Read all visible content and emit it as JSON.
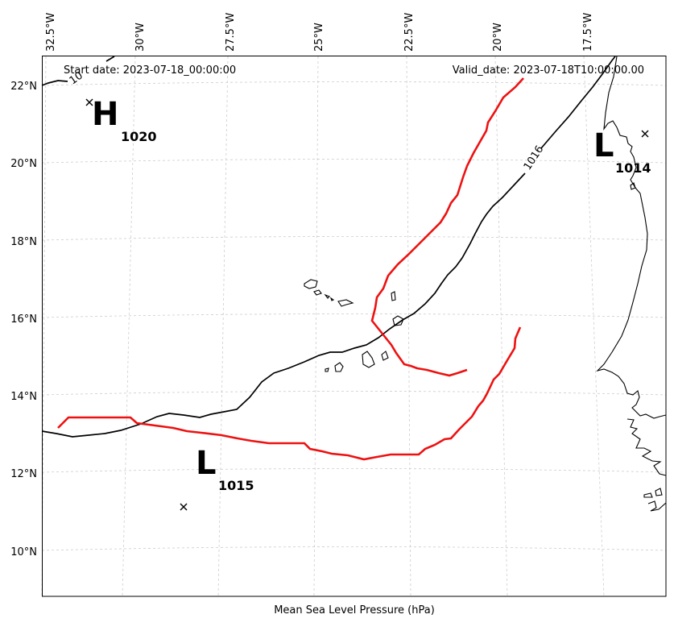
{
  "header": {
    "start_date": "Start date: 2023-07-18_00:00:00",
    "valid_date": "Valid_date: 2023-07-18T10:00:00.00"
  },
  "footer": {
    "xlabel": "Mean Sea Level Pressure (hPa)"
  },
  "lon_ticks": [
    "32.5°W",
    "30°W",
    "27.5°W",
    "25°W",
    "22.5°W",
    "20°W",
    "17.5°W"
  ],
  "lat_ticks": [
    "22°N",
    "20°N",
    "18°N",
    "16°N",
    "14°N",
    "12°N",
    "10°N"
  ],
  "isobar": {
    "label": "1016",
    "partial_label": "10"
  },
  "pressure_centers": [
    {
      "type": "H",
      "value": "1020"
    },
    {
      "type": "L",
      "value": "1014"
    },
    {
      "type": "L",
      "value": "1015"
    }
  ],
  "colors": {
    "front": "#ee1111",
    "isobar": "#000000",
    "coast": "#000000",
    "grid": "#cccccc"
  }
}
